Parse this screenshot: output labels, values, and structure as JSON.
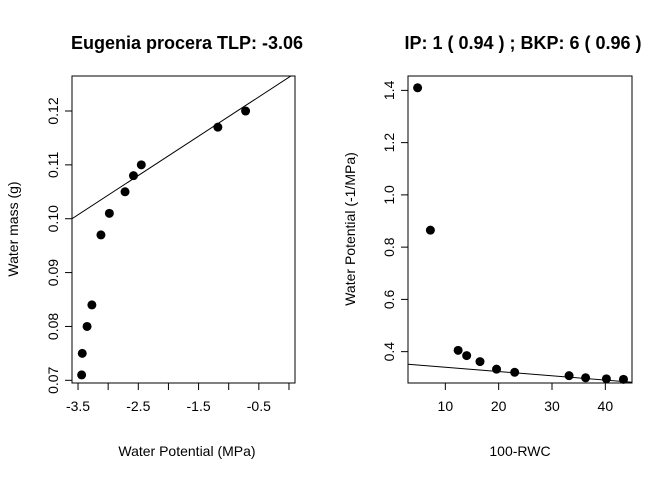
{
  "chart_data": [
    {
      "type": "scatter",
      "title": "Eugenia procera TLP: -3.06",
      "xlabel": "Water Potential (MPa)",
      "ylabel": "Water mass (g)",
      "xlim": [
        -3.6,
        0.1
      ],
      "ylim": [
        0.0695,
        0.1265
      ],
      "xticks": [
        -3.5,
        -3,
        -2.5,
        -2,
        -1.5,
        -1,
        -0.5,
        0
      ],
      "xtick_labels": [
        "-3.5",
        "",
        "-2.5",
        "",
        "-1.5",
        "",
        "-0.5",
        ""
      ],
      "yticks": [
        0.07,
        0.08,
        0.09,
        0.1,
        0.11,
        0.12
      ],
      "ytick_labels": [
        "0.07",
        "0.08",
        "0.09",
        "0.10",
        "0.11",
        "0.12"
      ],
      "points": {
        "x": [
          -3.44,
          -3.43,
          -3.35,
          -3.27,
          -3.12,
          -2.98,
          -2.72,
          -2.58,
          -2.45,
          -1.18,
          -0.72
        ],
        "y": [
          0.071,
          0.075,
          0.08,
          0.084,
          0.097,
          0.101,
          0.105,
          0.108,
          0.11,
          0.117,
          0.12
        ]
      },
      "fit_line": {
        "x": [
          -3.6,
          0.1
        ],
        "y": [
          0.1,
          0.127
        ]
      },
      "grid": false
    },
    {
      "type": "scatter",
      "title": "IP: 1 ( 0.94 ) ; BKP: 6 ( 0.96 )",
      "xlabel": "100-RWC",
      "ylabel": "Water Potential (-1/MPa)",
      "xlim": [
        3.0,
        45.0
      ],
      "ylim": [
        0.28,
        1.455
      ],
      "xticks": [
        10,
        20,
        30,
        40
      ],
      "xtick_labels": [
        "10",
        "20",
        "30",
        "40"
      ],
      "yticks": [
        0.4,
        0.6,
        0.8,
        1.0,
        1.2,
        1.4
      ],
      "ytick_labels": [
        "0.4",
        "0.6",
        "0.8",
        "1.0",
        "1.2",
        "1.4"
      ],
      "points": {
        "x": [
          4.8,
          7.2,
          12.4,
          14.0,
          16.5,
          19.6,
          23.0,
          33.2,
          36.3,
          40.2,
          43.4
        ],
        "y": [
          1.41,
          0.865,
          0.405,
          0.385,
          0.362,
          0.333,
          0.321,
          0.308,
          0.3,
          0.296,
          0.294
        ]
      },
      "fit_line": {
        "x": [
          3.0,
          45.0
        ],
        "y": [
          0.352,
          0.283
        ]
      },
      "grid": false
    }
  ]
}
